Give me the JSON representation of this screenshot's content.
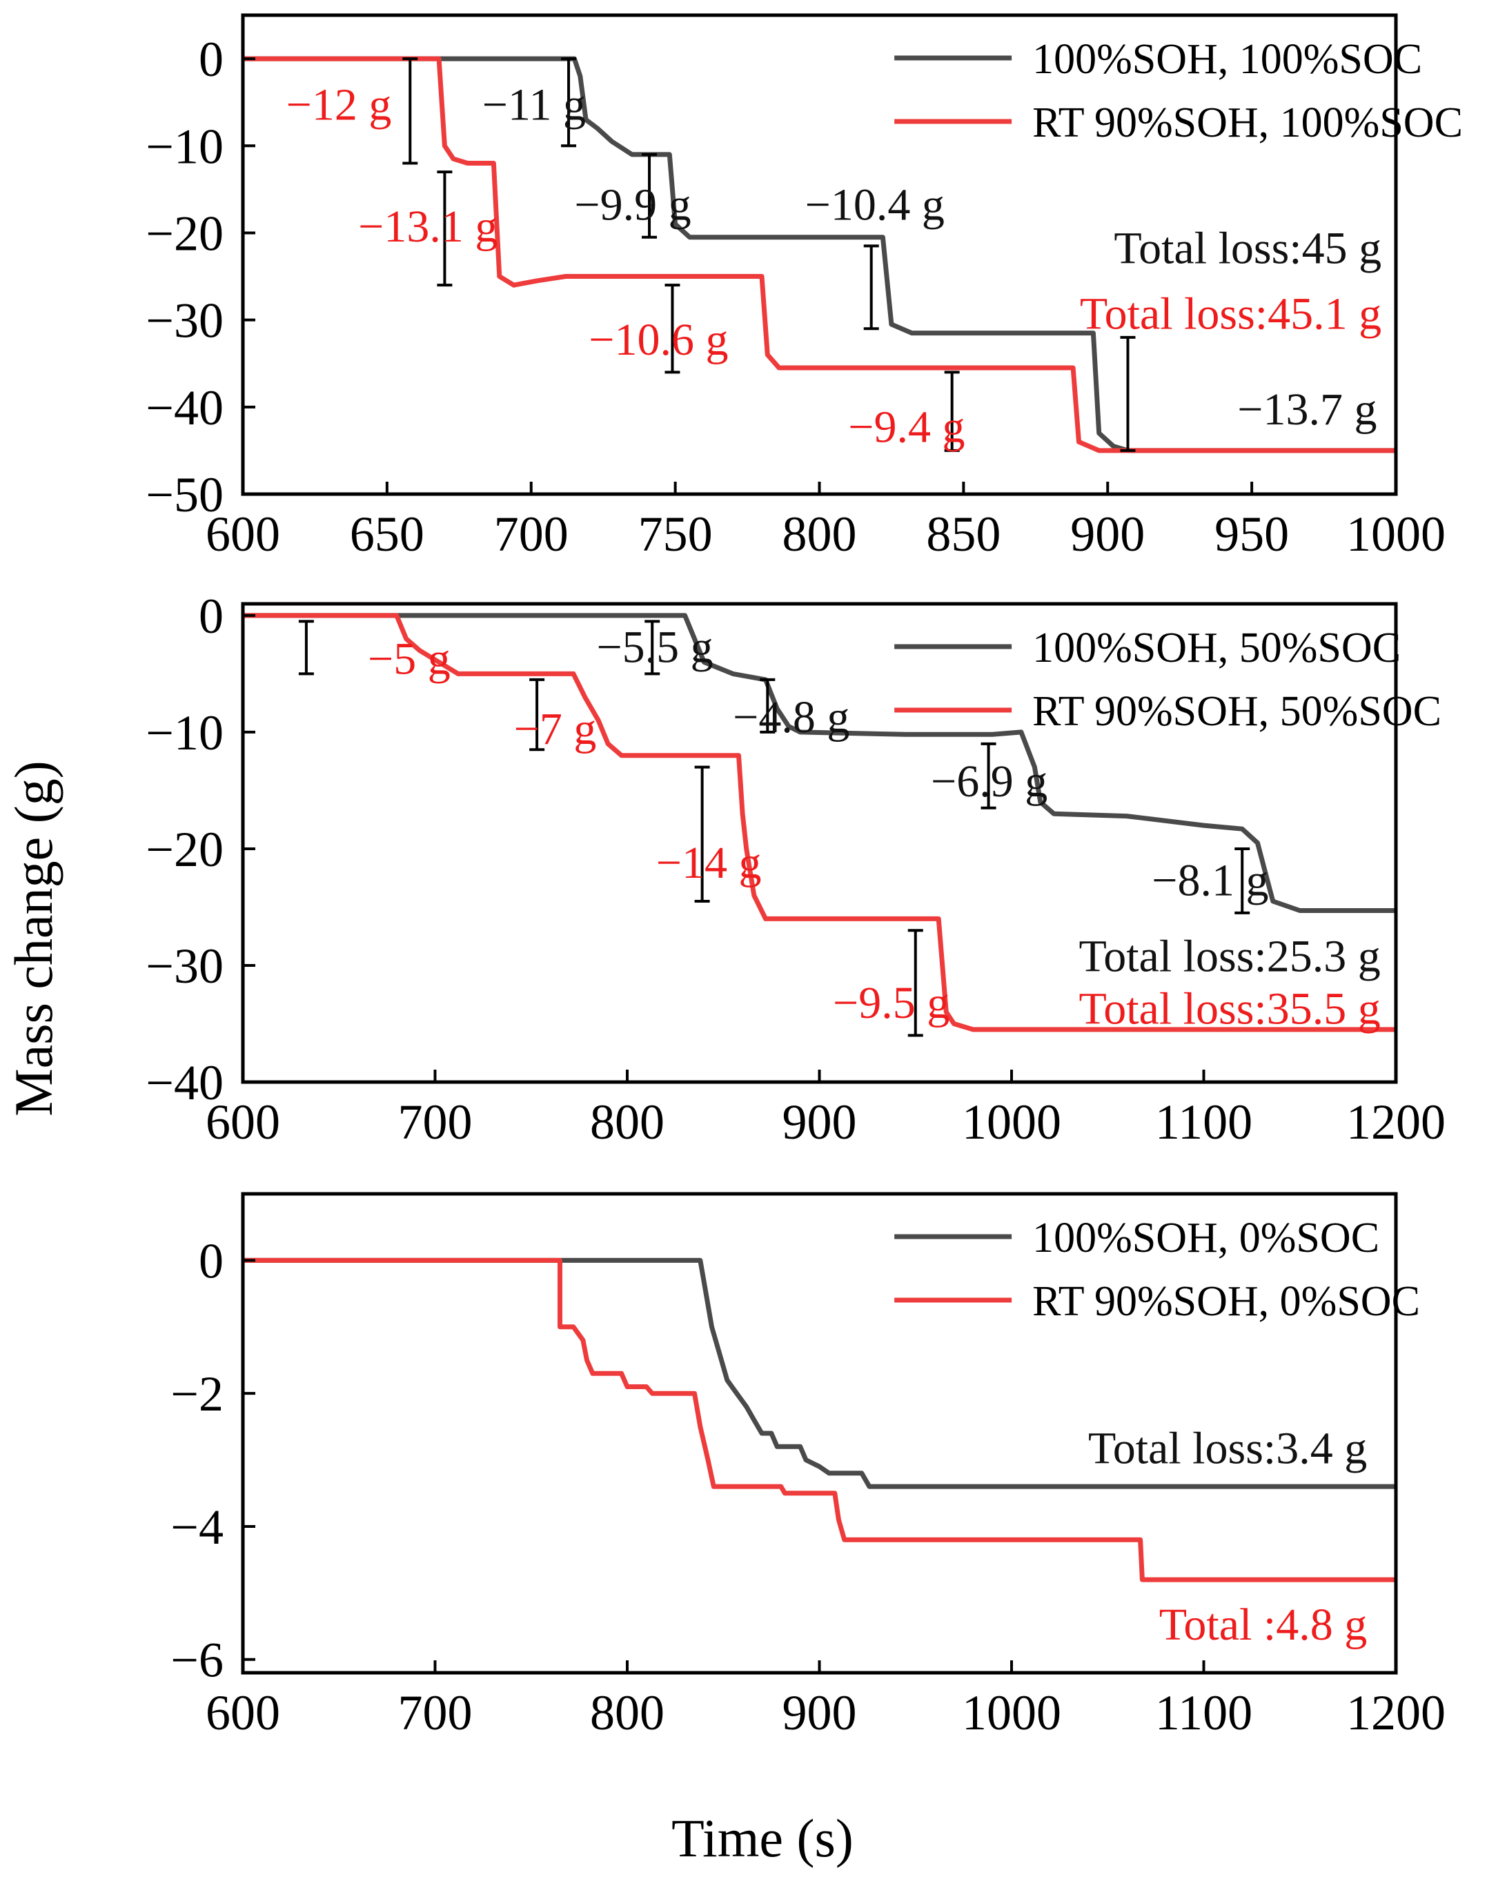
{
  "figure": {
    "ylabel": "Mass change (g)",
    "xlabel": "Time (s)"
  },
  "colors": {
    "black": "#4a4a4a",
    "red": "#ee3c3c",
    "ann_black": "#111111",
    "ann_red": "#ee1c1c"
  },
  "chart_data": [
    {
      "type": "line",
      "xlim": [
        600,
        1000
      ],
      "ylim": [
        -50,
        5
      ],
      "xticks": [
        600,
        650,
        700,
        750,
        800,
        850,
        900,
        950,
        1000
      ],
      "yticks": [
        0,
        -10,
        -20,
        -30,
        -40,
        -50
      ],
      "legend_position": "top-right",
      "series": [
        {
          "name": "100%SOH, 100%SOC",
          "color": "black",
          "points": [
            [
              600,
              0
            ],
            [
              715,
              0
            ],
            [
              717,
              -2
            ],
            [
              719,
              -7
            ],
            [
              723,
              -8
            ],
            [
              728,
              -9.5
            ],
            [
              735,
              -11
            ],
            [
              748,
              -11
            ],
            [
              750,
              -19
            ],
            [
              755,
              -20.5
            ],
            [
              822,
              -20.5
            ],
            [
              825,
              -30.5
            ],
            [
              832,
              -31.5
            ],
            [
              895,
              -31.5
            ],
            [
              897,
              -43
            ],
            [
              902,
              -44.5
            ],
            [
              907,
              -45
            ],
            [
              1000,
              -45
            ]
          ]
        },
        {
          "name": "RT  90%SOH, 100%SOC",
          "color": "red",
          "points": [
            [
              600,
              0
            ],
            [
              668,
              0
            ],
            [
              670,
              -10
            ],
            [
              673,
              -11.5
            ],
            [
              678,
              -12
            ],
            [
              687,
              -12
            ],
            [
              689,
              -25
            ],
            [
              694,
              -26
            ],
            [
              702,
              -25.5
            ],
            [
              712,
              -25
            ],
            [
              780,
              -25
            ],
            [
              782,
              -34
            ],
            [
              786,
              -35.5
            ],
            [
              888,
              -35.5
            ],
            [
              890,
              -44
            ],
            [
              897,
              -45
            ],
            [
              1000,
              -45
            ]
          ]
        }
      ],
      "annotations": [
        {
          "text": "−12 g",
          "color": "ann_red",
          "x": 615,
          "y": -7,
          "bar": [
            658,
            0,
            -12
          ]
        },
        {
          "text": "−11 g",
          "color": "ann_black",
          "x": 683,
          "y": -7,
          "bar": [
            713,
            0,
            -10
          ]
        },
        {
          "text": "−13.1 g",
          "color": "ann_red",
          "x": 640,
          "y": -21,
          "bar": [
            670,
            -13,
            -26
          ]
        },
        {
          "text": "−9.9 g",
          "color": "ann_black",
          "x": 715,
          "y": -18.5,
          "bar": [
            741,
            -11,
            -20.5
          ]
        },
        {
          "text": "−10.4 g",
          "color": "ann_black",
          "x": 795,
          "y": -18.5,
          "bar": [
            818,
            -21.5,
            -31
          ]
        },
        {
          "text": "−10.6 g",
          "color": "ann_red",
          "x": 720,
          "y": -34,
          "bar": [
            749,
            -26,
            -36
          ]
        },
        {
          "text": "−9.4 g",
          "color": "ann_red",
          "x": 810,
          "y": -44,
          "bar": [
            846,
            -36,
            -45
          ]
        },
        {
          "text": "−13.7 g",
          "color": "ann_black",
          "x": 945,
          "y": -42,
          "bar": [
            907,
            -32,
            -45
          ]
        },
        {
          "text": "Total loss:45 g",
          "color": "ann_black",
          "x": 995,
          "y": -23.5,
          "anchor": "end"
        },
        {
          "text": "Total loss:45.1 g",
          "color": "ann_red",
          "x": 995,
          "y": -31,
          "anchor": "end"
        }
      ]
    },
    {
      "type": "line",
      "xlim": [
        600,
        1200
      ],
      "ylim": [
        -40,
        1
      ],
      "xticks": [
        600,
        700,
        800,
        900,
        1000,
        1100,
        1200
      ],
      "yticks": [
        0,
        -10,
        -20,
        -30,
        -40
      ],
      "legend_position": "top-right",
      "series": [
        {
          "name": "100%SOH, 50%SOC",
          "color": "black",
          "points": [
            [
              600,
              0
            ],
            [
              830,
              0
            ],
            [
              835,
              -2
            ],
            [
              840,
              -4
            ],
            [
              855,
              -5
            ],
            [
              872,
              -5.5
            ],
            [
              878,
              -8
            ],
            [
              884,
              -9.5
            ],
            [
              890,
              -10
            ],
            [
              945,
              -10.2
            ],
            [
              990,
              -10.2
            ],
            [
              1005,
              -10
            ],
            [
              1012,
              -13
            ],
            [
              1015,
              -16
            ],
            [
              1022,
              -17
            ],
            [
              1060,
              -17.2
            ],
            [
              1100,
              -18
            ],
            [
              1120,
              -18.3
            ],
            [
              1128,
              -19.5
            ],
            [
              1132,
              -22
            ],
            [
              1136,
              -24.5
            ],
            [
              1150,
              -25.3
            ],
            [
              1200,
              -25.3
            ]
          ]
        },
        {
          "name": "RT  90%SOH, 50%SOC",
          "color": "red",
          "points": [
            [
              600,
              0
            ],
            [
              680,
              0
            ],
            [
              685,
              -2
            ],
            [
              692,
              -3
            ],
            [
              702,
              -4
            ],
            [
              712,
              -5
            ],
            [
              772,
              -5
            ],
            [
              778,
              -7
            ],
            [
              785,
              -9
            ],
            [
              790,
              -11
            ],
            [
              797,
              -12
            ],
            [
              858,
              -12
            ],
            [
              860,
              -17
            ],
            [
              862,
              -20
            ],
            [
              866,
              -24
            ],
            [
              872,
              -26
            ],
            [
              962,
              -26
            ],
            [
              966,
              -34
            ],
            [
              970,
              -35
            ],
            [
              980,
              -35.5
            ],
            [
              1200,
              -35.5
            ]
          ]
        }
      ],
      "annotations": [
        {
          "text": "−5 g",
          "color": "ann_red",
          "x": 665,
          "y": -5,
          "bar": [
            633,
            -0.5,
            -5
          ]
        },
        {
          "text": "−5.5 g",
          "color": "ann_black",
          "x": 784,
          "y": -4,
          "bar": [
            813,
            -0.5,
            -5
          ]
        },
        {
          "text": "−7 g",
          "color": "ann_red",
          "x": 741,
          "y": -11,
          "bar": [
            753,
            -5.5,
            -11.5
          ]
        },
        {
          "text": "−4.8 g",
          "color": "ann_black",
          "x": 855,
          "y": -10,
          "bar": [
            873,
            -5.5,
            -10
          ]
        },
        {
          "text": "−6.9 g",
          "color": "ann_black",
          "x": 958,
          "y": -15.5,
          "bar": [
            988,
            -11,
            -16.5
          ]
        },
        {
          "text": "−14 g",
          "color": "ann_red",
          "x": 815,
          "y": -22.5,
          "bar": [
            839,
            -13,
            -24.5
          ]
        },
        {
          "text": "−8.1 g",
          "color": "ann_black",
          "x": 1073,
          "y": -24,
          "bar": [
            1120,
            -20,
            -25.5
          ]
        },
        {
          "text": "−9.5 g",
          "color": "ann_red",
          "x": 907,
          "y": -34.5,
          "bar": [
            950,
            -27,
            -36
          ]
        },
        {
          "text": "Total  loss:25.3 g",
          "color": "ann_black",
          "x": 1192,
          "y": -30.5,
          "anchor": "end"
        },
        {
          "text": "Total  loss:35.5 g",
          "color": "ann_red",
          "x": 1192,
          "y": -35,
          "anchor": "end"
        }
      ]
    },
    {
      "type": "line",
      "xlim": [
        600,
        1200
      ],
      "ylim": [
        -6.2,
        1
      ],
      "xticks": [
        600,
        700,
        800,
        900,
        1000,
        1100,
        1200
      ],
      "yticks": [
        0,
        -2,
        -4,
        -6
      ],
      "legend_position": "top-right",
      "series": [
        {
          "name": "100%SOH, 0%SOC",
          "color": "black",
          "points": [
            [
              600,
              0
            ],
            [
              838,
              0
            ],
            [
              841,
              -0.5
            ],
            [
              844,
              -1.0
            ],
            [
              848,
              -1.4
            ],
            [
              852,
              -1.8
            ],
            [
              857,
              -2.0
            ],
            [
              862,
              -2.2
            ],
            [
              866,
              -2.4
            ],
            [
              870,
              -2.6
            ],
            [
              875,
              -2.6
            ],
            [
              878,
              -2.8
            ],
            [
              890,
              -2.8
            ],
            [
              893,
              -3.0
            ],
            [
              900,
              -3.1
            ],
            [
              905,
              -3.2
            ],
            [
              922,
              -3.2
            ],
            [
              926,
              -3.4
            ],
            [
              1200,
              -3.4
            ]
          ]
        },
        {
          "name": "RT  90%SOH, 0%SOC",
          "color": "red",
          "points": [
            [
              600,
              0
            ],
            [
              765,
              0
            ],
            [
              765,
              -1.0
            ],
            [
              772,
              -1.0
            ],
            [
              777,
              -1.2
            ],
            [
              779,
              -1.5
            ],
            [
              782,
              -1.7
            ],
            [
              797,
              -1.7
            ],
            [
              800,
              -1.9
            ],
            [
              810,
              -1.9
            ],
            [
              813,
              -2.0
            ],
            [
              835,
              -2.0
            ],
            [
              838,
              -2.5
            ],
            [
              842,
              -3.0
            ],
            [
              845,
              -3.4
            ],
            [
              880,
              -3.4
            ],
            [
              882,
              -3.5
            ],
            [
              908,
              -3.5
            ],
            [
              910,
              -3.9
            ],
            [
              913,
              -4.2
            ],
            [
              1067,
              -4.2
            ],
            [
              1068,
              -4.8
            ],
            [
              1200,
              -4.8
            ]
          ]
        }
      ],
      "annotations": [
        {
          "text": "Total loss:3.4 g",
          "color": "ann_black",
          "x": 1185,
          "y": -3.05,
          "anchor": "end"
        },
        {
          "text": "Total :4.8 g",
          "color": "ann_red",
          "x": 1185,
          "y": -5.7,
          "anchor": "end"
        }
      ]
    }
  ]
}
